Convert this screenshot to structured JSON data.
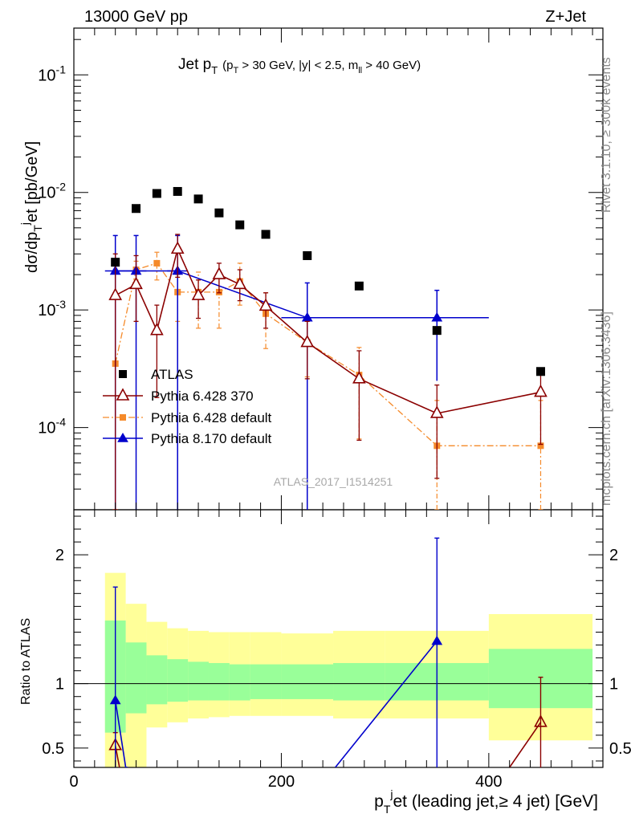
{
  "header": {
    "left": "13000 GeV pp",
    "right": "Z+Jet"
  },
  "side_labels": {
    "rivet": "Rivet 3.1.10, ≥ 300k events",
    "mcplots": "mcplots.cern.ch [arXiv:1306.3436]"
  },
  "watermark": "ATLAS_2017_I1514251",
  "chart_data": [
    {
      "type": "scatter",
      "panel": "main",
      "title": "Jet p_T (p_T > 30 GeV, |y| < 2.5, m_ll > 40 GeV)",
      "ylabel": "dσ/dp_T^j et [pb/GeV]",
      "yscale": "log",
      "xlim": [
        0,
        510
      ],
      "ylim": [
        2e-05,
        0.25
      ],
      "yticks": [
        {
          "v": 0.0001,
          "label": "10^-4"
        },
        {
          "v": 0.001,
          "label": "10^-3"
        },
        {
          "v": 0.01,
          "label": "10^-2"
        },
        {
          "v": 0.1,
          "label": "10^-1"
        }
      ],
      "legend_position": "lower-left",
      "series": [
        {
          "name": "ATLAS",
          "style": "square",
          "color": "#000000",
          "points": [
            {
              "x": 40,
              "y": 0.00255
            },
            {
              "x": 60,
              "y": 0.0073
            },
            {
              "x": 80,
              "y": 0.0098
            },
            {
              "x": 100,
              "y": 0.0102
            },
            {
              "x": 120,
              "y": 0.0088
            },
            {
              "x": 140,
              "y": 0.0067
            },
            {
              "x": 160,
              "y": 0.0053
            },
            {
              "x": 185,
              "y": 0.0044
            },
            {
              "x": 225,
              "y": 0.0029
            },
            {
              "x": 275,
              "y": 0.0016
            },
            {
              "x": 350,
              "y": 0.00067
            },
            {
              "x": 450,
              "y": 0.0003
            }
          ]
        },
        {
          "name": "Pythia 6.428 370",
          "style": "open-triangle",
          "color": "#8b0000",
          "line": "solid",
          "points": [
            {
              "x": 40,
              "y": 0.00133,
              "lo": 1e-05,
              "hi": 0.003
            },
            {
              "x": 60,
              "y": 0.00165,
              "lo": 0.0008,
              "hi": 0.0029
            },
            {
              "x": 80,
              "y": 0.00067,
              "lo": 0.00018,
              "hi": 0.0011
            },
            {
              "x": 100,
              "y": 0.0033,
              "lo": 0.0019,
              "hi": 0.0044
            },
            {
              "x": 120,
              "y": 0.00133,
              "lo": 0.00085,
              "hi": 0.0018
            },
            {
              "x": 140,
              "y": 0.002,
              "lo": 0.0014,
              "hi": 0.0025
            },
            {
              "x": 160,
              "y": 0.00165,
              "lo": 0.0012,
              "hi": 0.0022
            },
            {
              "x": 185,
              "y": 0.00108,
              "lo": 0.0007,
              "hi": 0.0014
            },
            {
              "x": 225,
              "y": 0.00053,
              "lo": 0.00026,
              "hi": 0.0008
            },
            {
              "x": 275,
              "y": 0.00026,
              "lo": 7.8e-05,
              "hi": 0.00045
            },
            {
              "x": 350,
              "y": 0.000132,
              "lo": 3.7e-05,
              "hi": 0.00023
            },
            {
              "x": 450,
              "y": 0.0002,
              "lo": 7.2e-05,
              "hi": 0.0003
            }
          ]
        },
        {
          "name": "Pythia 6.428 default",
          "style": "filled-square-small",
          "color": "#f58a2a",
          "line": "dashdot",
          "points": [
            {
              "x": 40,
              "y": 0.00035,
              "lo": 1e-05,
              "hi": 1e-05
            },
            {
              "x": 60,
              "y": 0.0022,
              "lo": 0.0018,
              "hi": 0.0026
            },
            {
              "x": 80,
              "y": 0.0025,
              "lo": 0.0018,
              "hi": 0.0031
            },
            {
              "x": 100,
              "y": 0.00142,
              "lo": 0.0008,
              "hi": 0.002
            },
            {
              "x": 120,
              "y": 0.00142,
              "lo": 0.0007,
              "hi": 0.0021
            },
            {
              "x": 140,
              "y": 0.00142,
              "lo": 0.0007,
              "hi": 0.0021
            },
            {
              "x": 160,
              "y": 0.00175,
              "lo": 0.0011,
              "hi": 0.0025
            },
            {
              "x": 185,
              "y": 0.00093,
              "lo": 0.00047,
              "hi": 0.0014
            },
            {
              "x": 225,
              "y": 0.00053,
              "lo": 0.00027,
              "hi": 0.0008
            },
            {
              "x": 275,
              "y": 0.00028,
              "lo": 8e-05,
              "hi": 0.00048
            },
            {
              "x": 350,
              "y": 7e-05,
              "lo": 1e-05,
              "hi": 0.00017
            },
            {
              "x": 450,
              "y": 7e-05,
              "lo": 1e-05,
              "hi": 0.00017
            }
          ]
        },
        {
          "name": "Pythia 8.170 default",
          "style": "filled-triangle",
          "color": "#0000cc",
          "line": "solid",
          "points": [
            {
              "x": 40,
              "xlo": 30,
              "xhi": 50,
              "y": 0.00215,
              "lo": 1e-05,
              "hi": 0.0043
            },
            {
              "x": 60,
              "xlo": 50,
              "xhi": 70,
              "y": 0.00215,
              "lo": 1e-05,
              "hi": 0.0043
            },
            {
              "x": 100,
              "xlo": 90,
              "xhi": 110,
              "y": 0.00215,
              "lo": 1e-05,
              "hi": 0.0043
            },
            {
              "x": 225,
              "xlo": 200,
              "xhi": 250,
              "y": 0.00086,
              "lo": 1e-05,
              "hi": 0.0017
            },
            {
              "x": 350,
              "xlo": 300,
              "xhi": 400,
              "y": 0.00086,
              "lo": 0.00025,
              "hi": 0.00147
            }
          ]
        }
      ]
    },
    {
      "type": "scatter",
      "panel": "ratio",
      "ylabel": "Ratio to ATLAS",
      "xlabel": "p_T^j et (leading jet,≥ 4 jet) [GeV]",
      "xlim": [
        0,
        510
      ],
      "ylim": [
        0.35,
        2.35
      ],
      "xticks": [
        0,
        200,
        400
      ],
      "yticks": [
        0.5,
        1,
        2
      ],
      "bands": [
        {
          "xlo": 30,
          "xhi": 50,
          "yellow": [
            0.35,
            1.86
          ],
          "green": [
            0.62,
            1.49
          ]
        },
        {
          "xlo": 50,
          "xhi": 70,
          "yellow": [
            0.35,
            1.62
          ],
          "green": [
            0.77,
            1.32
          ]
        },
        {
          "xlo": 70,
          "xhi": 90,
          "yellow": [
            0.66,
            1.48
          ],
          "green": [
            0.84,
            1.22
          ]
        },
        {
          "xlo": 90,
          "xhi": 110,
          "yellow": [
            0.7,
            1.43
          ],
          "green": [
            0.86,
            1.19
          ]
        },
        {
          "xlo": 110,
          "xhi": 130,
          "yellow": [
            0.73,
            1.41
          ],
          "green": [
            0.87,
            1.17
          ]
        },
        {
          "xlo": 130,
          "xhi": 150,
          "yellow": [
            0.74,
            1.4
          ],
          "green": [
            0.87,
            1.16
          ]
        },
        {
          "xlo": 150,
          "xhi": 170,
          "yellow": [
            0.75,
            1.4
          ],
          "green": [
            0.87,
            1.15
          ]
        },
        {
          "xlo": 170,
          "xhi": 200,
          "yellow": [
            0.75,
            1.4
          ],
          "green": [
            0.88,
            1.15
          ]
        },
        {
          "xlo": 200,
          "xhi": 250,
          "yellow": [
            0.75,
            1.39
          ],
          "green": [
            0.88,
            1.15
          ]
        },
        {
          "xlo": 250,
          "xhi": 300,
          "yellow": [
            0.73,
            1.41
          ],
          "green": [
            0.87,
            1.16
          ]
        },
        {
          "xlo": 300,
          "xhi": 400,
          "yellow": [
            0.73,
            1.41
          ],
          "green": [
            0.87,
            1.16
          ]
        },
        {
          "xlo": 400,
          "xhi": 500,
          "yellow": [
            0.56,
            1.54
          ],
          "green": [
            0.81,
            1.27
          ]
        }
      ],
      "series": [
        {
          "name": "Pythia 6.428 370",
          "style": "open-triangle",
          "color": "#8b0000",
          "points": [
            {
              "x": 40,
              "y": 0.52,
              "lo": 0.35,
              "hi": 0.62
            },
            {
              "x": 450,
              "y": 0.7,
              "lo": 0.35,
              "hi": 1.05
            }
          ],
          "segments": [
            {
              "x1": 40,
              "y1": 0.52,
              "x2": 44,
              "y2": 0.35
            },
            {
              "x1": 420,
              "y1": 0.35,
              "x2": 450,
              "y2": 0.7
            }
          ]
        },
        {
          "name": "Pythia 8.170 default",
          "style": "filled-triangle",
          "color": "#0000cc",
          "points": [
            {
              "x": 40,
              "y": 0.87,
              "lo": 0.35,
              "hi": 1.75
            },
            {
              "x": 350,
              "y": 1.33,
              "lo": 0.35,
              "hi": 2.13
            }
          ],
          "segments": [
            {
              "x1": 40,
              "y1": 0.87,
              "x2": 50,
              "y2": 0.35
            },
            {
              "x1": 50,
              "y1": 0.35,
              "x2": 52,
              "y2": 0.35
            },
            {
              "x1": 252,
              "y1": 0.35,
              "x2": 350,
              "y2": 1.33
            }
          ]
        }
      ]
    }
  ]
}
